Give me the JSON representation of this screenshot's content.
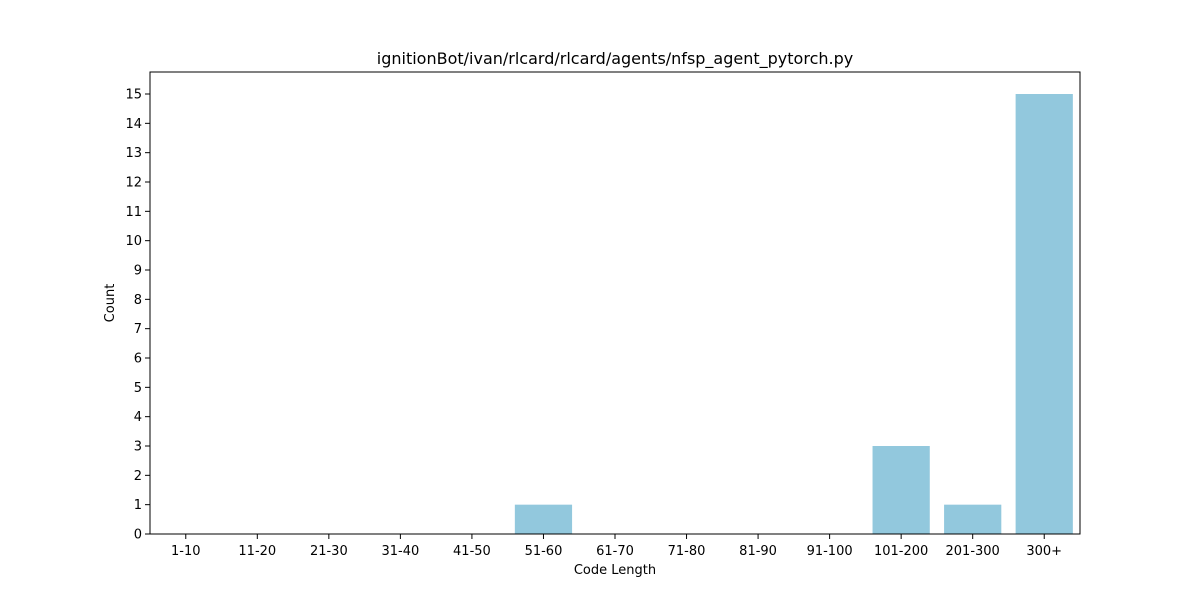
{
  "chart_data": {
    "type": "bar",
    "title": "ignitionBot/ivan/rlcard/rlcard/agents/nfsp_agent_pytorch.py",
    "xlabel": "Code Length",
    "ylabel": "Count",
    "categories": [
      "1-10",
      "11-20",
      "21-30",
      "31-40",
      "41-50",
      "51-60",
      "61-70",
      "71-80",
      "81-90",
      "91-100",
      "101-200",
      "201-300",
      "300+"
    ],
    "values": [
      0,
      0,
      0,
      0,
      0,
      1,
      0,
      0,
      0,
      0,
      3,
      1,
      15
    ],
    "ylim": [
      0,
      15.75
    ],
    "yticks": [
      0,
      1,
      2,
      3,
      4,
      5,
      6,
      7,
      8,
      9,
      10,
      11,
      12,
      13,
      14,
      15
    ],
    "grid": false,
    "bar_color": "#92c8dd"
  }
}
